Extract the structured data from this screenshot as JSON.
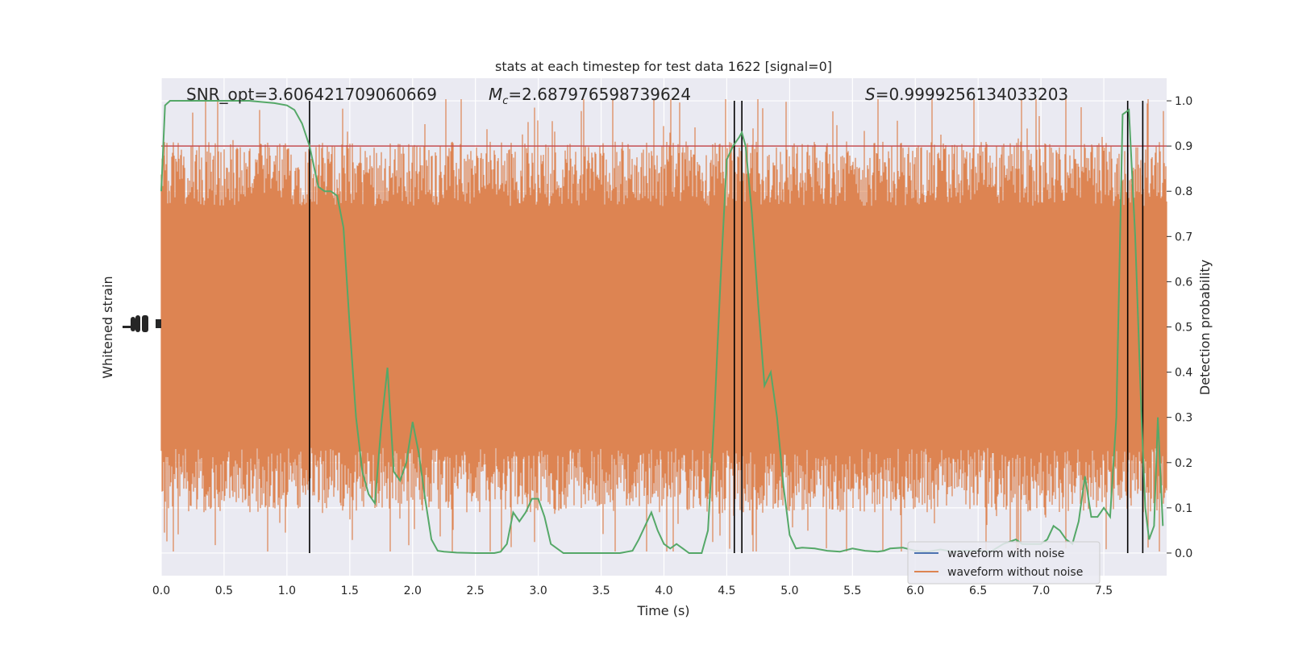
{
  "chart_data": {
    "type": "line",
    "title": "stats at each timestep for test data 1622 [signal=0]",
    "xlabel": "Time (s)",
    "ylabel_left": "Whitened strain",
    "ylabel_right": "Detection probability",
    "xlim": [
      0.0,
      8.0
    ],
    "ylim_right": [
      -0.05,
      1.05
    ],
    "grid": true,
    "legend_position": "lower right",
    "x_ticks": [
      "0.0",
      "0.5",
      "1.0",
      "1.5",
      "2.0",
      "2.5",
      "3.0",
      "3.5",
      "4.0",
      "4.5",
      "5.0",
      "5.5",
      "6.0",
      "6.5",
      "7.0",
      "7.5"
    ],
    "y_right_ticks": [
      "0.0",
      "0.1",
      "0.2",
      "0.3",
      "0.4",
      "0.5",
      "0.6",
      "0.7",
      "0.8",
      "0.9",
      "1.0"
    ],
    "annotations": {
      "snr": "SNR_opt=3.606421709060669",
      "mc": "=2.687976598739624",
      "s": "=0.9999256134033203"
    },
    "threshold": 0.9,
    "vertical_lines": [
      1.18,
      4.56,
      4.62,
      7.69,
      7.81
    ],
    "series": [
      {
        "name": "waveform with noise",
        "color": "#4c72b0"
      },
      {
        "name": "waveform without noise",
        "color": "#dd8452"
      },
      {
        "name": "",
        "color": "#55a868",
        "x": [
          0.0,
          0.03,
          0.07,
          0.15,
          0.3,
          0.5,
          0.7,
          0.9,
          1.0,
          1.06,
          1.12,
          1.18,
          1.25,
          1.3,
          1.35,
          1.4,
          1.45,
          1.5,
          1.55,
          1.6,
          1.65,
          1.7,
          1.75,
          1.8,
          1.85,
          1.9,
          1.95,
          2.0,
          2.05,
          2.1,
          2.15,
          2.2,
          2.25,
          2.35,
          2.5,
          2.65,
          2.7,
          2.75,
          2.8,
          2.85,
          2.9,
          2.95,
          3.0,
          3.05,
          3.1,
          3.2,
          3.3,
          3.4,
          3.5,
          3.65,
          3.75,
          3.8,
          3.85,
          3.9,
          3.95,
          4.0,
          4.05,
          4.1,
          4.15,
          4.2,
          4.25,
          4.3,
          4.35,
          4.4,
          4.45,
          4.5,
          4.55,
          4.6,
          4.62,
          4.65,
          4.7,
          4.75,
          4.8,
          4.85,
          4.9,
          4.95,
          5.0,
          5.05,
          5.1,
          5.2,
          5.3,
          5.4,
          5.5,
          5.6,
          5.7,
          5.75,
          5.8,
          5.9,
          6.0,
          6.1,
          6.2,
          6.3,
          6.4,
          6.5,
          6.6,
          6.7,
          6.8,
          6.85,
          6.9,
          7.0,
          7.05,
          7.1,
          7.15,
          7.2,
          7.25,
          7.3,
          7.35,
          7.4,
          7.45,
          7.5,
          7.55,
          7.6,
          7.65,
          7.7,
          7.75,
          7.8,
          7.83,
          7.86,
          7.9,
          7.93,
          7.97
        ],
        "y": [
          0.8,
          0.99,
          1.0,
          1.0,
          1.0,
          1.0,
          1.0,
          0.995,
          0.99,
          0.98,
          0.95,
          0.9,
          0.81,
          0.8,
          0.8,
          0.79,
          0.72,
          0.5,
          0.3,
          0.18,
          0.13,
          0.11,
          0.28,
          0.41,
          0.18,
          0.16,
          0.2,
          0.29,
          0.22,
          0.12,
          0.03,
          0.005,
          0.003,
          0.001,
          0.0,
          0.0,
          0.003,
          0.02,
          0.09,
          0.07,
          0.09,
          0.12,
          0.12,
          0.08,
          0.02,
          0.0,
          0.0,
          0.0,
          0.0,
          0.0,
          0.005,
          0.03,
          0.06,
          0.09,
          0.05,
          0.02,
          0.01,
          0.02,
          0.01,
          0.0,
          0.0,
          0.0,
          0.05,
          0.3,
          0.6,
          0.87,
          0.9,
          0.92,
          0.93,
          0.9,
          0.75,
          0.55,
          0.37,
          0.4,
          0.3,
          0.15,
          0.04,
          0.01,
          0.012,
          0.01,
          0.005,
          0.003,
          0.01,
          0.005,
          0.003,
          0.005,
          0.01,
          0.012,
          0.005,
          0.003,
          0.008,
          0.003,
          0.005,
          0.005,
          0.003,
          0.02,
          0.03,
          0.02,
          0.02,
          0.02,
          0.03,
          0.06,
          0.05,
          0.03,
          0.02,
          0.07,
          0.17,
          0.08,
          0.08,
          0.1,
          0.08,
          0.3,
          0.97,
          0.98,
          0.7,
          0.3,
          0.1,
          0.03,
          0.06,
          0.3,
          0.06
        ]
      }
    ],
    "threshold_color": "#c44e52",
    "vline_color": "#000000",
    "background_color": "#eaeaf2"
  }
}
